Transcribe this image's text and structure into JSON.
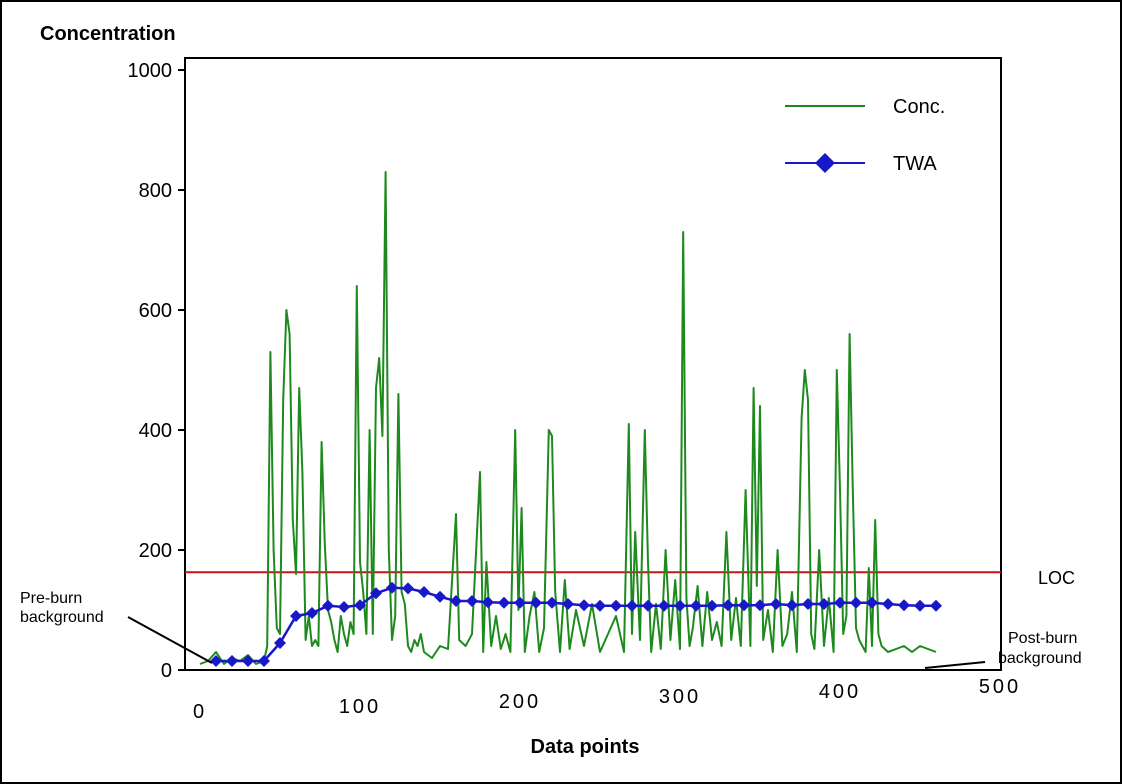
{
  "chart_data": {
    "type": "line",
    "title": "",
    "ylabel": "Concentration",
    "xlabel": "Data points",
    "xlim": [
      0,
      500
    ],
    "ylim": [
      0,
      1000
    ],
    "x_ticks": [
      "0",
      "100",
      "200",
      "300",
      "400",
      "500"
    ],
    "y_ticks": [
      "0",
      "200",
      "400",
      "600",
      "800",
      "1000"
    ],
    "grid": false,
    "legend": {
      "position": "top-right",
      "entries": [
        "Conc.",
        "TWA"
      ]
    },
    "colors": {
      "conc": "#1e8a1e",
      "twa": "#1818c8",
      "loc": "#c81414"
    },
    "reference_line": {
      "label": "LOC",
      "y": 163
    },
    "annotations": [
      {
        "id": "pre",
        "lines": [
          "Pre-burn",
          "background"
        ]
      },
      {
        "id": "post",
        "lines": [
          "Post-burn",
          "background"
        ]
      }
    ],
    "series": [
      {
        "name": "Conc.",
        "x": [
          0,
          5,
          10,
          15,
          20,
          25,
          30,
          35,
          40,
          42,
          44,
          46,
          48,
          50,
          52,
          54,
          56,
          58,
          60,
          62,
          64,
          66,
          68,
          70,
          72,
          74,
          76,
          78,
          80,
          82,
          84,
          86,
          88,
          90,
          92,
          94,
          96,
          98,
          100,
          102,
          104,
          106,
          108,
          110,
          112,
          114,
          116,
          118,
          120,
          122,
          124,
          126,
          128,
          130,
          132,
          134,
          136,
          138,
          140,
          145,
          150,
          155,
          160,
          162,
          164,
          166,
          170,
          175,
          177,
          179,
          182,
          185,
          188,
          191,
          194,
          197,
          199,
          201,
          203,
          206,
          209,
          212,
          215,
          218,
          220,
          222,
          225,
          228,
          231,
          235,
          240,
          245,
          250,
          255,
          260,
          265,
          268,
          270,
          272,
          275,
          278,
          280,
          282,
          285,
          288,
          291,
          294,
          297,
          300,
          302,
          304,
          306,
          308,
          311,
          314,
          317,
          320,
          323,
          326,
          329,
          332,
          335,
          338,
          341,
          344,
          346,
          348,
          350,
          352,
          355,
          358,
          361,
          364,
          367,
          370,
          373,
          376,
          378,
          380,
          382,
          384,
          387,
          390,
          393,
          396,
          398,
          400,
          402,
          404,
          406,
          408,
          410,
          412,
          414,
          416,
          418,
          420,
          422,
          424,
          426,
          430,
          435,
          440,
          445,
          450,
          455,
          460
        ],
        "values": [
          10,
          15,
          30,
          10,
          20,
          15,
          25,
          10,
          15,
          40,
          530,
          200,
          70,
          60,
          450,
          600,
          560,
          250,
          160,
          470,
          330,
          50,
          90,
          40,
          50,
          40,
          380,
          210,
          100,
          80,
          50,
          30,
          90,
          60,
          40,
          80,
          60,
          640,
          180,
          130,
          60,
          400,
          60,
          470,
          520,
          390,
          830,
          200,
          50,
          90,
          460,
          130,
          110,
          40,
          30,
          50,
          40,
          60,
          30,
          20,
          40,
          35,
          260,
          50,
          45,
          40,
          60,
          330,
          30,
          180,
          40,
          90,
          35,
          60,
          30,
          400,
          100,
          270,
          30,
          90,
          130,
          30,
          70,
          400,
          390,
          130,
          30,
          150,
          35,
          100,
          40,
          110,
          30,
          60,
          90,
          30,
          410,
          60,
          230,
          50,
          400,
          180,
          30,
          110,
          35,
          200,
          50,
          150,
          35,
          730,
          120,
          40,
          70,
          140,
          40,
          130,
          50,
          80,
          40,
          230,
          50,
          120,
          40,
          300,
          40,
          470,
          140,
          440,
          50,
          100,
          30,
          200,
          40,
          60,
          130,
          30,
          420,
          500,
          450,
          60,
          35,
          200,
          40,
          120,
          30,
          500,
          300,
          60,
          90,
          560,
          300,
          70,
          50,
          40,
          30,
          170,
          40,
          250,
          60,
          40,
          30,
          35,
          40,
          30,
          40,
          35,
          30
        ]
      },
      {
        "name": "TWA",
        "x": [
          10,
          20,
          30,
          40,
          50,
          60,
          70,
          80,
          90,
          100,
          110,
          120,
          130,
          140,
          150,
          160,
          170,
          180,
          190,
          200,
          210,
          220,
          230,
          240,
          250,
          260,
          270,
          280,
          290,
          300,
          310,
          320,
          330,
          340,
          350,
          360,
          370,
          380,
          390,
          400,
          410,
          420,
          430,
          440,
          450,
          460
        ],
        "values": [
          15,
          15,
          15,
          15,
          45,
          90,
          95,
          107,
          105,
          108,
          128,
          137,
          136,
          130,
          122,
          115,
          115,
          113,
          112,
          112,
          112,
          112,
          110,
          108,
          107,
          107,
          107,
          107,
          107,
          107,
          107,
          107,
          108,
          108,
          108,
          110,
          108,
          110,
          110,
          112,
          112,
          112,
          110,
          108,
          107,
          107
        ]
      }
    ]
  }
}
